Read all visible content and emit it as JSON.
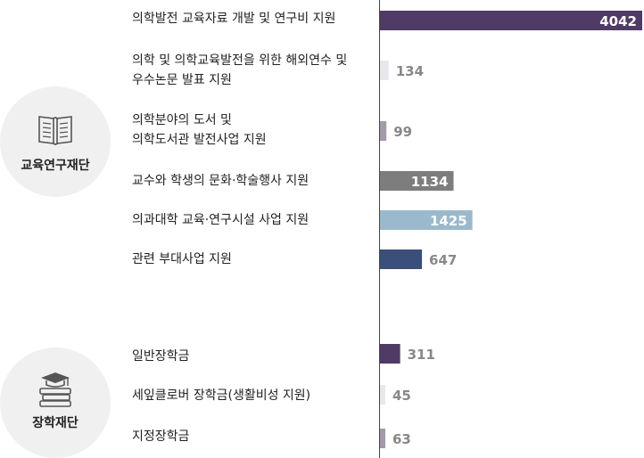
{
  "colors": {
    "purple": "#4f3b66",
    "light_gray": "#e6e8ec",
    "mauve": "#a39aab",
    "gray": "#7d7d7d",
    "light_blue": "#9bb9cc",
    "navy": "#3a4f7a",
    "value_gray": "#888888",
    "white": "#ffffff"
  },
  "groups": [
    {
      "title": "교육연구재단",
      "icon": "books-icon"
    },
    {
      "title": "장학재단",
      "icon": "graduation-cap-books-icon"
    }
  ],
  "chart_data": {
    "type": "bar",
    "orientation": "horizontal",
    "grid": false,
    "xlim": [
      0,
      4042
    ],
    "rows": [
      {
        "group": 0,
        "label_lines": [
          "의학발전 교육자료 개발 및 연구비 지원"
        ],
        "value": 4042,
        "color": "purple"
      },
      {
        "group": 0,
        "label_lines": [
          "의학 및 의학교육발전을 위한 해외연수 및",
          "우수논문 발표 지원"
        ],
        "value": 134,
        "color": "light_gray"
      },
      {
        "group": 0,
        "label_lines": [
          "의학분야의 도서 및",
          "의학도서관 발전사업 지원"
        ],
        "value": 99,
        "color": "mauve"
      },
      {
        "group": 0,
        "label_lines": [
          "교수와 학생의 문화·학술행사 지원"
        ],
        "value": 1134,
        "color": "gray"
      },
      {
        "group": 0,
        "label_lines": [
          "의과대학 교육·연구시설 사업 지원"
        ],
        "value": 1425,
        "color": "light_blue"
      },
      {
        "group": 0,
        "label_lines": [
          "관련 부대사업 지원"
        ],
        "value": 647,
        "color": "navy"
      },
      {
        "group": 1,
        "label_lines": [
          "일반장학금"
        ],
        "value": 311,
        "color": "purple"
      },
      {
        "group": 1,
        "label_lines": [
          "세잎클로버 장학금(생활비성 지원)"
        ],
        "value": 45,
        "color": "light_gray"
      },
      {
        "group": 1,
        "label_lines": [
          "지정장학금"
        ],
        "value": 63,
        "color": "mauve"
      }
    ]
  }
}
